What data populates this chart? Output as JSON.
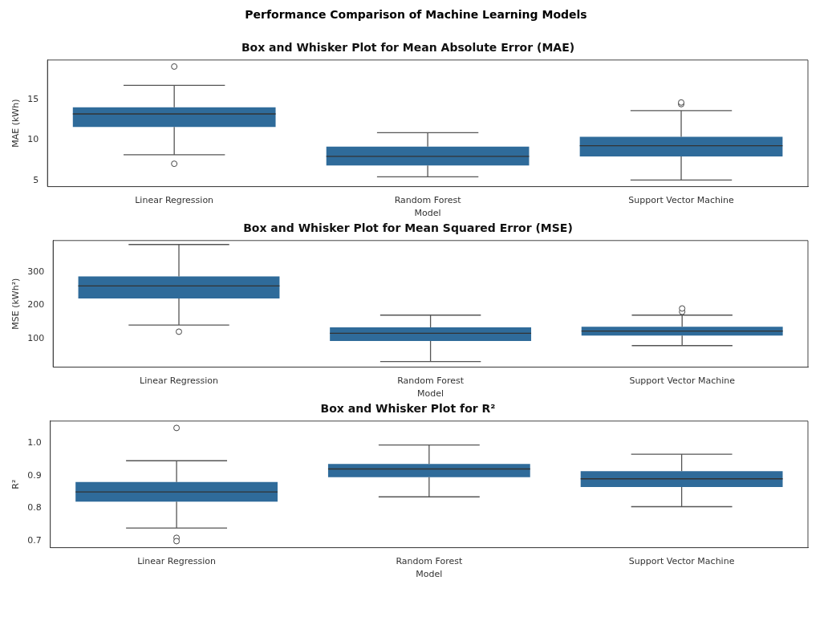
{
  "chart_data": [
    {
      "type": "box",
      "title": "Performance Comparison of Machine Learning Models",
      "subtitle": "Box and Whisker Plot for Mean Absolute Error (MAE)",
      "xlabel": "Model",
      "ylabel": "MAE (kWh)",
      "categories": [
        "Linear Regression",
        "Random Forest",
        "Support Vector Machine"
      ],
      "color": "#2f6b9a",
      "grid": false,
      "legend": false,
      "ylim": [
        4.3,
        19.8
      ],
      "yticks": [
        5,
        10,
        15
      ],
      "boxes": [
        {
          "low": 8.2,
          "q1": 11.6,
          "median": 13.2,
          "q3": 14.0,
          "high": 16.7,
          "outliers": [
            19.0,
            7.1
          ]
        },
        {
          "low": 5.5,
          "q1": 6.9,
          "median": 8.0,
          "q3": 9.2,
          "high": 10.9
        },
        {
          "low": 5.1,
          "q1": 8.0,
          "median": 9.3,
          "q3": 10.4,
          "high": 13.6,
          "outliers": [
            14.4,
            14.6
          ]
        }
      ]
    },
    {
      "type": "box",
      "title": "Box and Whisker Plot for Mean Squared Error (MSE)",
      "xlabel": "Model",
      "ylabel": "MSE (kWh²)",
      "categories": [
        "Linear Regression",
        "Random Forest",
        "Support Vector Machine"
      ],
      "color": "#2f6b9a",
      "grid": false,
      "legend": false,
      "ylim": [
        13,
        395
      ],
      "yticks": [
        100,
        200,
        300
      ],
      "boxes": [
        {
          "low": 140,
          "q1": 220,
          "median": 258,
          "q3": 287,
          "high": 383,
          "outliers": [
            120
          ]
        },
        {
          "low": 30,
          "q1": 92,
          "median": 115,
          "q3": 133,
          "high": 170
        },
        {
          "low": 78,
          "q1": 108,
          "median": 122,
          "q3": 135,
          "high": 170,
          "outliers": [
            180,
            190
          ]
        }
      ]
    },
    {
      "type": "box",
      "title": "Box and Whisker Plot for R²",
      "xlabel": "Model",
      "ylabel": "R²",
      "categories": [
        "Linear Regression",
        "Random Forest",
        "Support Vector Machine"
      ],
      "color": "#2f6b9a",
      "grid": false,
      "legend": false,
      "ylim": [
        0.68,
        1.066
      ],
      "yticks": [
        0.7,
        0.8,
        0.9,
        {
          "value": 1.0,
          "label": "1.0"
        }
      ],
      "boxes": [
        {
          "low": 0.74,
          "q1": 0.82,
          "median": 0.85,
          "q3": 0.88,
          "high": 0.945,
          "outliers": [
            1.045,
            0.71,
            0.7
          ]
        },
        {
          "low": 0.835,
          "q1": 0.895,
          "median": 0.92,
          "q3": 0.935,
          "high": 0.993
        },
        {
          "low": 0.805,
          "q1": 0.865,
          "median": 0.89,
          "q3": 0.913,
          "high": 0.965
        }
      ]
    }
  ]
}
